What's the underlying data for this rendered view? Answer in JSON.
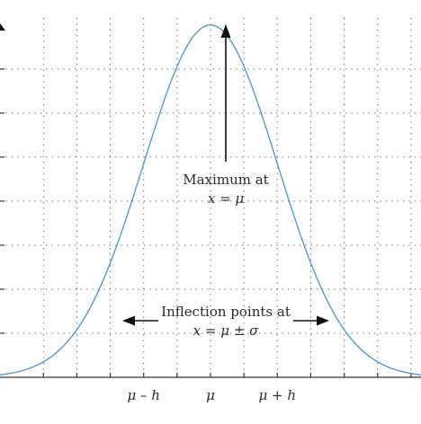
{
  "chart_data": {
    "type": "line",
    "title": "",
    "xlabel": "",
    "ylabel": "",
    "grid": true,
    "curve": {
      "description_type": "gaussian",
      "mu": 0,
      "sigma": 1,
      "x_range": [
        -3.15,
        3.15
      ],
      "peak": 1.0
    },
    "x_ticks": [
      -2.5,
      -2,
      -1.5,
      -1,
      -0.5,
      0,
      0.5,
      1,
      1.5,
      2,
      2.5,
      3
    ],
    "x_tick_labels": [
      {
        "x": -1,
        "label": "μ – h"
      },
      {
        "x": 0,
        "label": "μ"
      },
      {
        "x": 1,
        "label": "μ + h"
      }
    ],
    "y_ticks": [
      0.125,
      0.25,
      0.375,
      0.5,
      0.625,
      0.75,
      0.875
    ],
    "xlim": [
      -3.15,
      3.15
    ],
    "ylim": [
      0,
      1.02
    ],
    "annotations": {
      "maximum": {
        "line1": "Maximum at",
        "line2": "x = μ"
      },
      "inflection": {
        "line1": "Inflection points at",
        "line2": "x = μ ± σ"
      }
    },
    "colors": {
      "curve": "#4a94cf",
      "text": "#2a2a2a",
      "arrow": "#111111"
    }
  }
}
